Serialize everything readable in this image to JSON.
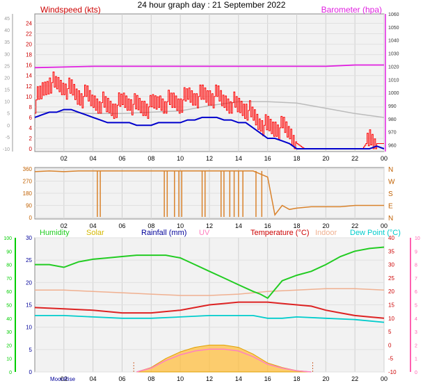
{
  "title": "24 hour graph day : 21 September 2022",
  "colors": {
    "wind_avg": "#0000cc",
    "wind_gust": "#ff0000",
    "barometer": "#e020e0",
    "direction": "#d9822b",
    "humidity": "#22cc22",
    "solar": "#d4b800",
    "solar_fill": "#ffbf40",
    "rainfall": "#000099",
    "uv": "#ff80c0",
    "temperature": "#cc0000",
    "indoor": "#f0b090",
    "dew_point": "#00cccc",
    "left_axis_green": "#00cc00",
    "right_axis_pink": "#ff60b0"
  },
  "chart_data": [
    {
      "id": "wind",
      "type": "line",
      "legend": {
        "windspeed": "Windspeed (kts)",
        "barometer": "Barometer (hpa)"
      },
      "x_ticks": [
        "02",
        "04",
        "06",
        "08",
        "10",
        "12",
        "14",
        "16",
        "18",
        "20",
        "22",
        "00"
      ],
      "xlim_hours": [
        0,
        24
      ],
      "y_left": {
        "label": "kts",
        "ticks": [
          0,
          2,
          4,
          6,
          8,
          10,
          12,
          14,
          16,
          18,
          20,
          22,
          24
        ],
        "outer_ticks": [
          -10,
          -5,
          0,
          5,
          10,
          15,
          20,
          25,
          30,
          35,
          40,
          45
        ],
        "lim": [
          0,
          25
        ]
      },
      "y_right": {
        "label": "hpa",
        "ticks": [
          980,
          990,
          1000,
          1010,
          1020,
          1030,
          1040,
          1050
        ],
        "outer_ticks": [
          960,
          970,
          980,
          990,
          1000,
          1010,
          1020,
          1030,
          1040,
          1050,
          1060
        ],
        "lim": [
          955,
          1060
        ]
      },
      "series": [
        {
          "name": "gust",
          "x": [
            0,
            0.5,
            1,
            1.5,
            2,
            2.5,
            3,
            3.5,
            4,
            4.5,
            5,
            5.5,
            6,
            6.5,
            7,
            7.5,
            8,
            8.5,
            9,
            9.5,
            10,
            10.5,
            11,
            11.5,
            12,
            12.5,
            13,
            13.5,
            14,
            14.5,
            15,
            15.5,
            16,
            16.5,
            17,
            17.5,
            18,
            18.5,
            19,
            19.5,
            20,
            20.5,
            21,
            21.5,
            22,
            22.5,
            23,
            23.5,
            24
          ],
          "values": [
            9,
            11,
            13,
            12,
            12,
            11,
            10,
            10,
            9,
            9,
            8,
            8,
            9,
            9,
            8,
            8,
            8,
            9,
            9,
            9,
            9,
            10,
            10,
            10,
            10,
            10,
            9,
            9,
            8,
            8,
            6,
            5,
            4,
            4,
            4,
            3,
            1,
            0,
            0,
            0,
            0,
            0,
            0,
            0,
            0,
            0,
            2,
            1,
            1
          ]
        },
        {
          "name": "average",
          "x": [
            0,
            0.5,
            1,
            1.5,
            2,
            2.5,
            3,
            3.5,
            4,
            4.5,
            5,
            5.5,
            6,
            6.5,
            7,
            7.5,
            8,
            8.5,
            9,
            9.5,
            10,
            10.5,
            11,
            11.5,
            12,
            12.5,
            13,
            13.5,
            14,
            14.5,
            15,
            15.5,
            16,
            16.5,
            17,
            17.5,
            18,
            18.5,
            19,
            19.5,
            20,
            20.5,
            21,
            21.5,
            22,
            22.5,
            23,
            23.5,
            24
          ],
          "values": [
            6,
            6.5,
            7,
            7,
            7.5,
            7.5,
            7,
            6.5,
            6,
            5.5,
            5,
            5,
            5,
            5,
            4.5,
            4.5,
            4.5,
            5,
            5,
            5,
            5,
            5.5,
            5.5,
            6,
            6,
            6,
            5.5,
            5.5,
            5,
            5,
            4,
            3,
            2,
            2,
            1.5,
            1,
            0,
            0,
            0,
            0,
            0,
            0,
            0,
            0,
            0,
            0,
            0,
            0.5,
            0
          ]
        },
        {
          "name": "barometer_lines",
          "x": [
            0,
            2,
            4,
            6,
            8,
            10,
            12,
            14,
            16,
            18,
            20,
            22,
            24
          ],
          "values": [
            1019,
            1019.5,
            1020,
            1020,
            1020,
            1020,
            1020,
            1020,
            1020,
            1020,
            1020,
            1021,
            1021
          ]
        },
        {
          "name": "indoor_hint",
          "x": [
            0,
            2,
            4,
            6,
            8,
            10,
            12,
            14,
            16,
            18,
            20,
            22,
            24
          ],
          "values": [
            985,
            985,
            984,
            984,
            985,
            986,
            990,
            993,
            993,
            992,
            988,
            984,
            981
          ]
        }
      ]
    },
    {
      "id": "direction",
      "type": "line",
      "x_ticks": [
        "02",
        "04",
        "06",
        "08",
        "10",
        "12",
        "14",
        "16",
        "18",
        "20",
        "22",
        "00"
      ],
      "y_left": {
        "ticks": [
          0,
          90,
          180,
          270,
          360
        ]
      },
      "y_right": {
        "ticks": [
          "N",
          "W",
          "S",
          "E",
          "N"
        ]
      },
      "series": [
        {
          "name": "wind_direction",
          "x": [
            0,
            1,
            2,
            3,
            4,
            5,
            6,
            7,
            8,
            9,
            10,
            11,
            12,
            13,
            14,
            15,
            16,
            16.5,
            17,
            17.5,
            18,
            19,
            20,
            21,
            22,
            23,
            24
          ],
          "values": [
            340,
            345,
            340,
            345,
            345,
            345,
            345,
            345,
            345,
            345,
            345,
            345,
            345,
            345,
            345,
            345,
            300,
            20,
            90,
            60,
            70,
            80,
            80,
            80,
            90,
            90,
            90
          ]
        }
      ]
    },
    {
      "id": "climate",
      "type": "line",
      "legend": [
        "Humidity",
        "Solar",
        "Rainfall (mm)",
        "UV",
        "Temperature (°C)",
        "Indoor",
        "Dew Point (°C)"
      ],
      "x_ticks": [
        "02",
        "04",
        "06",
        "08",
        "10",
        "12",
        "14",
        "16",
        "18",
        "20",
        "22",
        "00"
      ],
      "moon_label": "MoonRise",
      "y_outer_left": {
        "ticks": [
          0,
          10,
          20,
          30,
          40,
          50,
          60,
          70,
          80,
          90,
          100
        ]
      },
      "y_left": {
        "ticks": [
          0,
          5,
          10,
          15,
          20,
          25,
          30
        ]
      },
      "y_right": {
        "ticks": [
          -10,
          -5,
          0,
          5,
          10,
          15,
          20,
          25,
          30,
          35,
          40
        ]
      },
      "y_outer_right": {
        "ticks": [
          0,
          1,
          2,
          3,
          4,
          5,
          6,
          7,
          8,
          9,
          10
        ]
      },
      "series": [
        {
          "name": "humidity",
          "x": [
            0,
            1,
            2,
            3,
            4,
            5,
            6,
            7,
            8,
            9,
            10,
            11,
            12,
            13,
            14,
            15,
            15.5,
            16,
            17,
            18,
            19,
            20,
            21,
            22,
            23,
            24
          ],
          "values": [
            80,
            80,
            78,
            82,
            84,
            85,
            86,
            87,
            87,
            87,
            85,
            80,
            75,
            70,
            65,
            60,
            58,
            55,
            68,
            72,
            75,
            80,
            86,
            90,
            92,
            93
          ]
        },
        {
          "name": "temperature",
          "x": [
            0,
            2,
            4,
            6,
            8,
            9,
            10,
            11,
            12,
            13,
            14,
            15,
            16,
            17,
            18,
            19,
            20,
            21,
            22,
            23,
            24
          ],
          "values": [
            14,
            13.5,
            13,
            12,
            12,
            12.5,
            13,
            14,
            15,
            15.5,
            16,
            16,
            16,
            15.5,
            15,
            14.5,
            13,
            12,
            11,
            10.5,
            10
          ]
        },
        {
          "name": "indoor",
          "x": [
            0,
            2,
            4,
            6,
            8,
            10,
            12,
            14,
            16,
            18,
            20,
            22,
            24
          ],
          "values": [
            20.5,
            20.5,
            20,
            19.5,
            19,
            18.5,
            18.5,
            19,
            20,
            20.5,
            21,
            21,
            20.5
          ]
        },
        {
          "name": "dew_point",
          "x": [
            0,
            2,
            4,
            6,
            8,
            10,
            12,
            14,
            15,
            16,
            17,
            18,
            20,
            22,
            24
          ],
          "values": [
            11,
            11,
            10.5,
            10,
            10,
            10.5,
            11,
            11,
            11,
            10,
            10,
            10.5,
            10,
            9.5,
            8.5
          ]
        },
        {
          "name": "solar",
          "x": [
            7,
            8,
            9,
            10,
            11,
            12,
            13,
            14,
            15,
            16,
            17,
            18,
            19
          ],
          "values": [
            0,
            1,
            3,
            4.5,
            5.5,
            6,
            6,
            5.5,
            4,
            2,
            1,
            0.3,
            0
          ]
        }
      ]
    }
  ]
}
